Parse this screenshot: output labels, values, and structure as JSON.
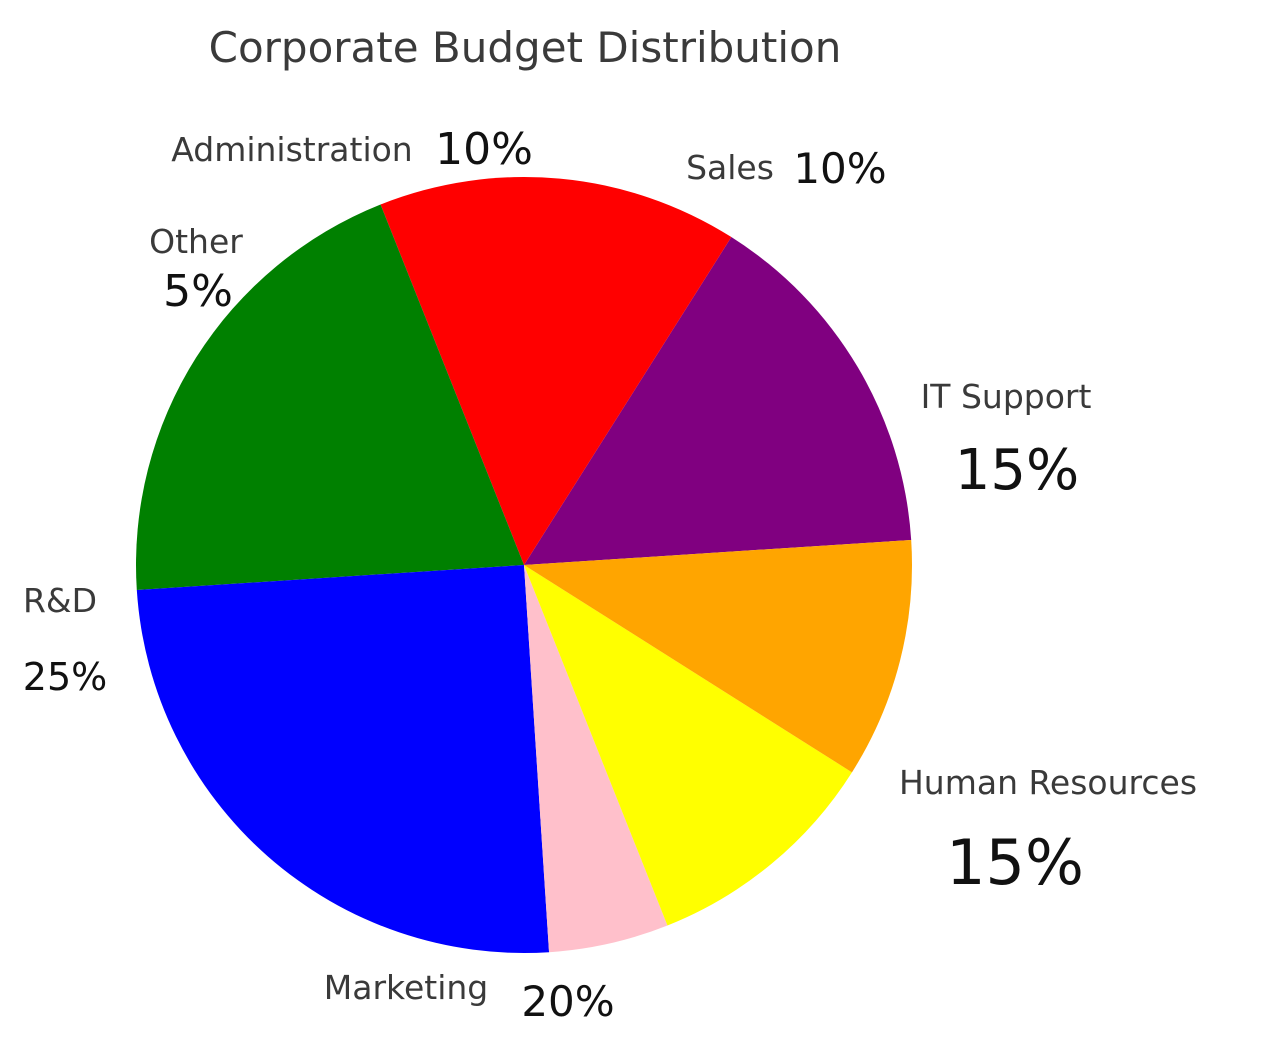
{
  "chart_data": {
    "type": "pie",
    "title": "Corporate Budget Distribution",
    "slices": [
      {
        "label": "IT Support",
        "value": 15,
        "pct_label": "15%",
        "color": "#800080"
      },
      {
        "label": "Human Resources",
        "value": 15,
        "pct_label": "15%",
        "color": "#ff0000"
      },
      {
        "label": "Marketing",
        "value": 20,
        "pct_label": "20%",
        "color": "#008000"
      },
      {
        "label": "R&D",
        "value": 25,
        "pct_label": "25%",
        "color": "#0000ff"
      },
      {
        "label": "Other",
        "value": 5,
        "pct_label": "5%",
        "color": "#ffc0cb"
      },
      {
        "label": "Administration",
        "value": 10,
        "pct_label": "10%",
        "color": "#ffff00"
      },
      {
        "label": "Sales",
        "value": 10,
        "pct_label": "10%",
        "color": "#ffa500"
      }
    ],
    "legend": "none"
  }
}
